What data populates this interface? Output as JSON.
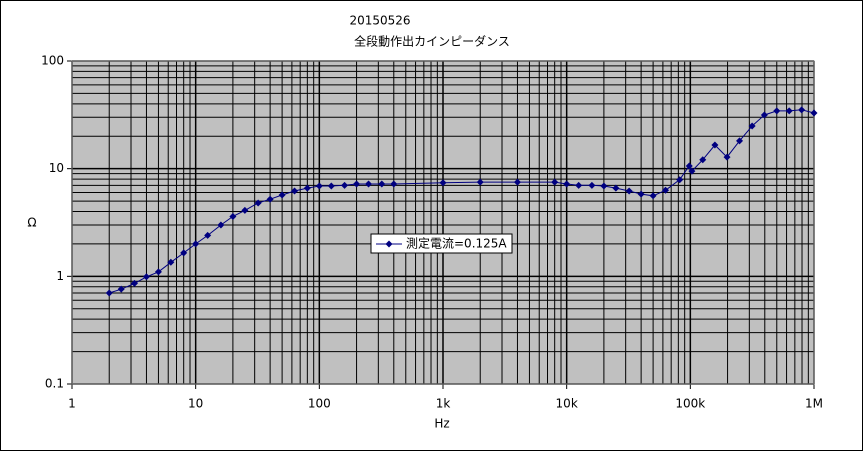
{
  "chart_data": {
    "type": "line",
    "title": "20150526",
    "subtitle": "全段動作出カインピーダンス",
    "x_label": "Hz",
    "y_label": "Ω",
    "xlog": true,
    "ylog": true,
    "grid": true,
    "minor_grid": true,
    "background": "#c0c0c0",
    "legend": "center",
    "xlim": [
      1,
      1000000
    ],
    "ylim": [
      0.1,
      100
    ],
    "xticks": [
      1,
      10,
      100,
      {
        "value": 1000,
        "label": "1k"
      },
      {
        "value": 10000,
        "label": "10k"
      },
      {
        "value": 100000,
        "label": "100k"
      },
      {
        "value": 1000000,
        "label": "1M"
      }
    ],
    "yticks": [
      0.1,
      1,
      10,
      100
    ],
    "series": [
      {
        "name": "測定電流=0.125A",
        "color": "#000080",
        "x": [
          2,
          2.5,
          3.2,
          4,
          5,
          6.3,
          8,
          10,
          12.5,
          16,
          20,
          25,
          32,
          40,
          50,
          63,
          80,
          100,
          125,
          160,
          200,
          250,
          320,
          400,
          1000,
          2000,
          4000,
          8000,
          10000,
          12500,
          16000,
          20000,
          25000,
          32000,
          40000,
          50000,
          63000,
          82000,
          98000,
          103000,
          126000,
          158000,
          198000,
          250000,
          316000,
          397000,
          500000,
          630000,
          794000,
          1000000
        ],
        "values": [
          0.7,
          0.76,
          0.86,
          0.99,
          1.1,
          1.35,
          1.65,
          2.0,
          2.4,
          3.0,
          3.6,
          4.1,
          4.8,
          5.2,
          5.7,
          6.2,
          6.6,
          6.9,
          6.9,
          7.0,
          7.2,
          7.2,
          7.2,
          7.2,
          7.4,
          7.5,
          7.5,
          7.5,
          7.2,
          7.0,
          7.0,
          6.9,
          6.6,
          6.2,
          5.8,
          5.6,
          6.3,
          7.9,
          10.6,
          9.5,
          12.1,
          16.6,
          12.8,
          18.1,
          24.9,
          31.5,
          34.4,
          34.4,
          35.2,
          32.9
        ]
      }
    ]
  }
}
